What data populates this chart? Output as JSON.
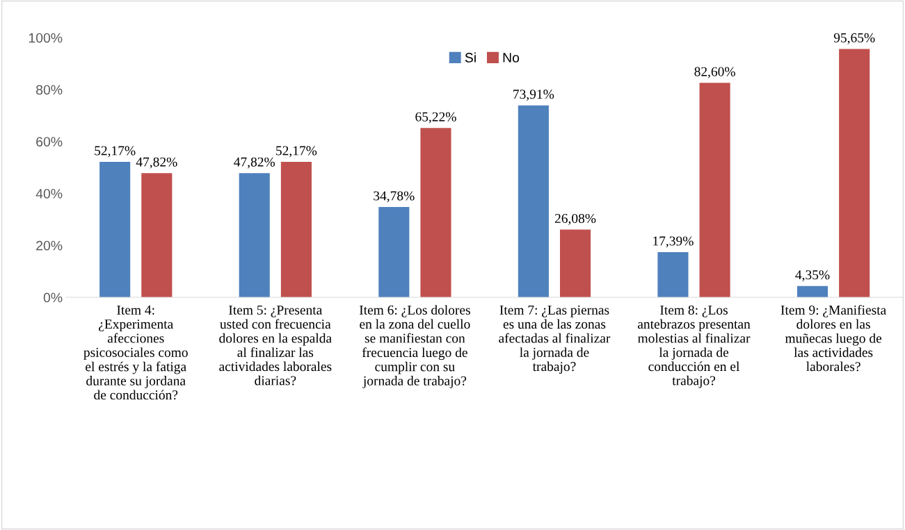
{
  "chart_data": {
    "type": "bar",
    "categories": [
      "Item 4:\n¿Experimenta\nafecciones\npsicosociales como\nel estrés y la fatiga\ndurante su jordana\nde conducción?",
      "Item 5: ¿Presenta\nusted con frecuencia\ndolores en la espalda\nal finalizar las\nactividades laborales\ndiarias?",
      "Item 6: ¿Los dolores\nen la zona del cuello\nse manifiestan con\nfrecuencia luego de\ncumplir con su\njornada de trabajo?",
      "Item 7: ¿Las piernas\nes una de las zonas\nafectadas al finalizar\nla jornada de\ntrabajo?",
      "Item 8: ¿Los\nantebrazos presentan\nmolestias al finalizar\nla jornada de\nconducción en el\ntrabajo?",
      "Item 9: ¿Manifiesta\ndolores en las\nmuñecas luego de\nlas actividades\nlaborales?"
    ],
    "series": [
      {
        "name": "Si",
        "color": "#4f81bd",
        "values": [
          52.17,
          47.82,
          34.78,
          73.91,
          17.39,
          4.35
        ],
        "value_labels": [
          "52,17%",
          "47,82%",
          "34,78%",
          "73,91%",
          "17,39%",
          "4,35%"
        ]
      },
      {
        "name": "No",
        "color": "#c0504d",
        "values": [
          47.82,
          52.17,
          65.22,
          26.08,
          82.6,
          95.65
        ],
        "value_labels": [
          "47,82%",
          "52,17%",
          "65,22%",
          "26,08%",
          "82,60%",
          "95,65%"
        ]
      }
    ],
    "ylim": [
      0,
      100
    ],
    "yticks": [
      {
        "value": 0,
        "label": "0%"
      },
      {
        "value": 20,
        "label": "20%"
      },
      {
        "value": 40,
        "label": "40%"
      },
      {
        "value": 60,
        "label": "60%"
      },
      {
        "value": 80,
        "label": "80%"
      },
      {
        "value": 100,
        "label": "100%"
      }
    ],
    "legend": "top",
    "grid": false
  }
}
